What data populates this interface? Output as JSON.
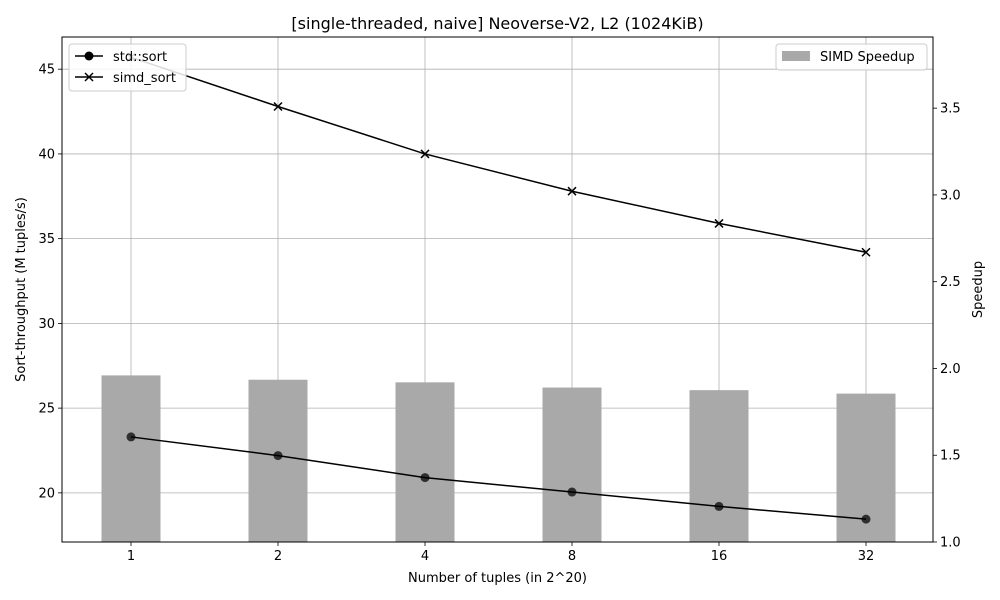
{
  "chart_data": {
    "type": "bar",
    "title": "[single-threaded, naive] Neoverse-V2, L2 (1024KiB)",
    "xlabel": "Number of tuples (in 2^20)",
    "ylabel": "Sort-throughput (M tuples/s)",
    "y2label": "Speedup",
    "categories": [
      "1",
      "2",
      "4",
      "8",
      "16",
      "32"
    ],
    "ylim": [
      17.1,
      46.9
    ],
    "y2lim": [
      1.0,
      3.91
    ],
    "yticks": [
      20,
      25,
      30,
      35,
      40,
      45
    ],
    "y2ticks": [
      1.0,
      1.5,
      2.0,
      2.5,
      3.0,
      3.5
    ],
    "grid": true,
    "lines": [
      {
        "name": "std::sort",
        "marker": "o",
        "values": [
          23.3,
          22.2,
          20.9,
          20.05,
          19.2,
          18.45
        ]
      },
      {
        "name": "simd_sort",
        "marker": "x",
        "values": [
          45.7,
          42.8,
          40.0,
          37.8,
          35.9,
          34.2
        ]
      }
    ],
    "bars": {
      "name": "SIMD Speedup",
      "axis": "right",
      "color": "#a9a9a9",
      "values": [
        1.96,
        1.935,
        1.92,
        1.89,
        1.875,
        1.855
      ]
    },
    "legend_left": "upper-left",
    "legend_right": "upper-right"
  }
}
